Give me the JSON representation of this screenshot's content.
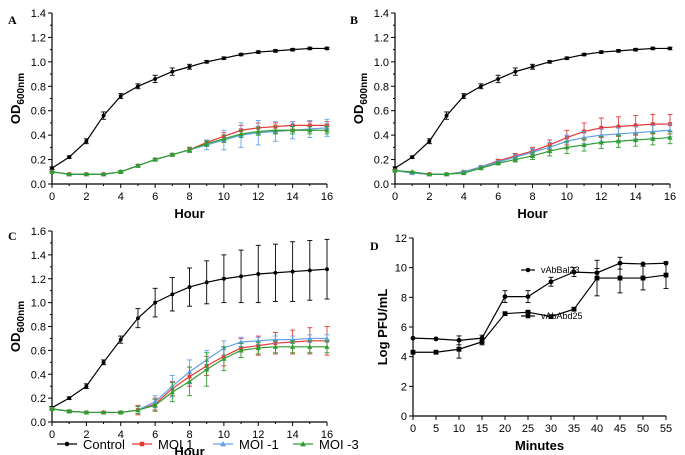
{
  "chart_data": [
    {
      "panel": "A",
      "type": "line",
      "xlabel": "Hour",
      "ylabel": "OD",
      "ylabel_sub": "600nm",
      "xlim": [
        0,
        16
      ],
      "ylim": [
        0,
        1.4
      ],
      "xticks": [
        "0",
        "2",
        "4",
        "6",
        "8",
        "10",
        "12",
        "14",
        "16"
      ],
      "yticks": [
        "0.0",
        "0.2",
        "0.4",
        "0.6",
        "0.8",
        "1.0",
        "1.2",
        "1.4"
      ],
      "x": [
        0,
        1,
        2,
        3,
        4,
        5,
        6,
        7,
        8,
        9,
        10,
        11,
        12,
        13,
        14,
        15,
        16
      ],
      "series": [
        {
          "name": "Control",
          "color": "#000000",
          "marker": "circle",
          "values": [
            0.13,
            0.22,
            0.35,
            0.56,
            0.72,
            0.8,
            0.86,
            0.92,
            0.96,
            1.0,
            1.03,
            1.06,
            1.08,
            1.09,
            1.1,
            1.11,
            1.11
          ],
          "errors": [
            0.01,
            0.01,
            0.02,
            0.03,
            0.02,
            0.02,
            0.03,
            0.03,
            0.02,
            0.01,
            0.01,
            0.01,
            0.01,
            0.01,
            0.01,
            0.01,
            0.01
          ]
        },
        {
          "name": "MOI 1",
          "color": "#e53935",
          "marker": "square",
          "values": [
            0.1,
            0.08,
            0.08,
            0.08,
            0.1,
            0.15,
            0.2,
            0.24,
            0.28,
            0.34,
            0.39,
            0.44,
            0.46,
            0.47,
            0.48,
            0.48,
            0.48
          ],
          "errors": [
            0.005,
            0.005,
            0.005,
            0.005,
            0.01,
            0.01,
            0.01,
            0.01,
            0.02,
            0.02,
            0.03,
            0.04,
            0.04,
            0.03,
            0.03,
            0.03,
            0.03
          ]
        },
        {
          "name": "MOI -1",
          "color": "#64a0e8",
          "marker": "triangle",
          "values": [
            0.1,
            0.08,
            0.08,
            0.08,
            0.1,
            0.15,
            0.2,
            0.24,
            0.28,
            0.32,
            0.36,
            0.4,
            0.42,
            0.43,
            0.44,
            0.45,
            0.46
          ],
          "errors": [
            0.005,
            0.005,
            0.005,
            0.005,
            0.01,
            0.01,
            0.01,
            0.01,
            0.02,
            0.04,
            0.08,
            0.1,
            0.1,
            0.08,
            0.07,
            0.07,
            0.07
          ]
        },
        {
          "name": "MOI -3",
          "color": "#2e9e2e",
          "marker": "triangle",
          "values": [
            0.1,
            0.08,
            0.08,
            0.08,
            0.1,
            0.15,
            0.2,
            0.24,
            0.28,
            0.33,
            0.37,
            0.41,
            0.43,
            0.44,
            0.44,
            0.44,
            0.44
          ],
          "errors": [
            0.005,
            0.005,
            0.005,
            0.005,
            0.01,
            0.01,
            0.01,
            0.01,
            0.02,
            0.02,
            0.03,
            0.03,
            0.03,
            0.03,
            0.03,
            0.03,
            0.03
          ]
        }
      ]
    },
    {
      "panel": "B",
      "type": "line",
      "xlabel": "Hour",
      "ylabel": "OD",
      "ylabel_sub": "600nm",
      "xlim": [
        0,
        16
      ],
      "ylim": [
        0,
        1.4
      ],
      "xticks": [
        "0",
        "2",
        "4",
        "6",
        "8",
        "10",
        "12",
        "14",
        "16"
      ],
      "yticks": [
        "0.0",
        "0.2",
        "0.4",
        "0.6",
        "0.8",
        "1.0",
        "1.2",
        "1.4"
      ],
      "x": [
        0,
        1,
        2,
        3,
        4,
        5,
        6,
        7,
        8,
        9,
        10,
        11,
        12,
        13,
        14,
        15,
        16
      ],
      "series": [
        {
          "name": "Control",
          "color": "#000000",
          "marker": "circle",
          "values": [
            0.13,
            0.22,
            0.35,
            0.56,
            0.72,
            0.8,
            0.86,
            0.92,
            0.96,
            1.0,
            1.03,
            1.06,
            1.08,
            1.09,
            1.1,
            1.11,
            1.11
          ],
          "errors": [
            0.01,
            0.01,
            0.02,
            0.03,
            0.02,
            0.02,
            0.03,
            0.03,
            0.02,
            0.01,
            0.01,
            0.01,
            0.01,
            0.01,
            0.01,
            0.01,
            0.01
          ]
        },
        {
          "name": "MOI 1",
          "color": "#e53935",
          "marker": "square",
          "values": [
            0.11,
            0.09,
            0.08,
            0.08,
            0.1,
            0.14,
            0.19,
            0.23,
            0.27,
            0.32,
            0.38,
            0.43,
            0.46,
            0.47,
            0.48,
            0.49,
            0.49
          ],
          "errors": [
            0.005,
            0.005,
            0.005,
            0.005,
            0.01,
            0.01,
            0.01,
            0.02,
            0.03,
            0.04,
            0.06,
            0.07,
            0.08,
            0.08,
            0.08,
            0.08,
            0.08
          ]
        },
        {
          "name": "MOI -1",
          "color": "#64a0e8",
          "marker": "triangle",
          "values": [
            0.11,
            0.09,
            0.08,
            0.08,
            0.1,
            0.14,
            0.18,
            0.22,
            0.26,
            0.3,
            0.35,
            0.38,
            0.4,
            0.41,
            0.42,
            0.43,
            0.44
          ],
          "errors": [
            0.005,
            0.005,
            0.005,
            0.005,
            0.01,
            0.01,
            0.01,
            0.02,
            0.03,
            0.04,
            0.05,
            0.05,
            0.05,
            0.05,
            0.05,
            0.05,
            0.05
          ]
        },
        {
          "name": "MOI -3",
          "color": "#2e9e2e",
          "marker": "triangle",
          "values": [
            0.11,
            0.1,
            0.08,
            0.08,
            0.09,
            0.13,
            0.17,
            0.2,
            0.23,
            0.27,
            0.3,
            0.32,
            0.34,
            0.35,
            0.36,
            0.37,
            0.38
          ],
          "errors": [
            0.005,
            0.005,
            0.005,
            0.005,
            0.01,
            0.01,
            0.01,
            0.02,
            0.03,
            0.04,
            0.05,
            0.05,
            0.05,
            0.05,
            0.05,
            0.05,
            0.05
          ]
        }
      ]
    },
    {
      "panel": "C",
      "type": "line",
      "xlabel": "Hour",
      "ylabel": "OD",
      "ylabel_sub": "600nm",
      "xlim": [
        0,
        16
      ],
      "ylim": [
        0,
        1.6
      ],
      "xticks": [
        "0",
        "2",
        "4",
        "6",
        "8",
        "10",
        "12",
        "14",
        "16"
      ],
      "yticks": [
        "0.0",
        "0.2",
        "0.4",
        "0.6",
        "0.8",
        "1.0",
        "1.2",
        "1.4",
        "1.6"
      ],
      "x": [
        0,
        1,
        2,
        3,
        4,
        5,
        6,
        7,
        8,
        9,
        10,
        11,
        12,
        13,
        14,
        15,
        16
      ],
      "series": [
        {
          "name": "Control",
          "color": "#000000",
          "marker": "circle",
          "values": [
            0.12,
            0.2,
            0.3,
            0.5,
            0.69,
            0.87,
            1.0,
            1.07,
            1.13,
            1.17,
            1.2,
            1.22,
            1.24,
            1.25,
            1.26,
            1.27,
            1.28
          ],
          "errors": [
            0.01,
            0.01,
            0.02,
            0.02,
            0.03,
            0.08,
            0.12,
            0.14,
            0.16,
            0.18,
            0.2,
            0.22,
            0.24,
            0.24,
            0.25,
            0.25,
            0.25
          ]
        },
        {
          "name": "MOI 1",
          "color": "#e53935",
          "marker": "square",
          "values": [
            0.11,
            0.09,
            0.08,
            0.08,
            0.08,
            0.1,
            0.15,
            0.28,
            0.38,
            0.47,
            0.55,
            0.62,
            0.64,
            0.66,
            0.67,
            0.68,
            0.68
          ],
          "errors": [
            0.01,
            0.01,
            0.005,
            0.005,
            0.01,
            0.04,
            0.05,
            0.06,
            0.08,
            0.08,
            0.08,
            0.08,
            0.08,
            0.09,
            0.1,
            0.11,
            0.12
          ]
        },
        {
          "name": "MOI -1",
          "color": "#64a0e8",
          "marker": "triangle",
          "values": [
            0.11,
            0.09,
            0.08,
            0.08,
            0.08,
            0.1,
            0.17,
            0.3,
            0.42,
            0.52,
            0.62,
            0.67,
            0.68,
            0.69,
            0.69,
            0.7,
            0.7
          ],
          "errors": [
            0.01,
            0.01,
            0.005,
            0.005,
            0.01,
            0.03,
            0.05,
            0.09,
            0.1,
            0.08,
            0.06,
            0.04,
            0.03,
            0.03,
            0.03,
            0.03,
            0.03
          ]
        },
        {
          "name": "MOI -3",
          "color": "#2e9e2e",
          "marker": "triangle",
          "values": [
            0.11,
            0.09,
            0.08,
            0.08,
            0.08,
            0.1,
            0.14,
            0.25,
            0.34,
            0.44,
            0.53,
            0.6,
            0.62,
            0.63,
            0.63,
            0.63,
            0.63
          ],
          "errors": [
            0.01,
            0.01,
            0.005,
            0.005,
            0.01,
            0.03,
            0.05,
            0.08,
            0.12,
            0.14,
            0.1,
            0.06,
            0.05,
            0.05,
            0.05,
            0.05,
            0.05
          ]
        }
      ]
    },
    {
      "panel": "D",
      "type": "line",
      "xlabel": "Minutes",
      "ylabel": "Log PFU/mL",
      "xlim": [
        0,
        55
      ],
      "ylim": [
        0,
        12
      ],
      "xticks": [
        "0",
        "5",
        "10",
        "15",
        "20",
        "25",
        "30",
        "35",
        "40",
        "45",
        "50",
        "55"
      ],
      "yticks": [
        "0",
        "2",
        "4",
        "6",
        "8",
        "10",
        "12"
      ],
      "x": [
        0,
        5,
        10,
        15,
        20,
        25,
        30,
        35,
        40,
        45,
        50,
        55
      ],
      "series": [
        {
          "name": "vAbBal23",
          "color": "#000000",
          "marker": "circle",
          "values": [
            5.25,
            5.2,
            5.1,
            5.25,
            8.05,
            8.05,
            9.05,
            9.7,
            9.65,
            10.3,
            10.25,
            10.3
          ],
          "errors": [
            0.0,
            0.0,
            0.3,
            0.2,
            0.4,
            0.4,
            0.3,
            0.3,
            0.3,
            0.4,
            0.0,
            0.0
          ]
        },
        {
          "name": "vAbAbd25",
          "color": "#000000",
          "marker": "square",
          "values": [
            4.3,
            4.3,
            4.5,
            5.0,
            6.9,
            7.0,
            6.7,
            7.2,
            9.3,
            9.3,
            9.3,
            9.5
          ],
          "errors": [
            0.0,
            0.0,
            0.6,
            0.2,
            0.1,
            0.1,
            0.1,
            0.1,
            1.2,
            1.0,
            0.8,
            0.9
          ]
        }
      ]
    }
  ],
  "legend": {
    "items": [
      {
        "label": "Control",
        "color": "#000000",
        "marker": "circle"
      },
      {
        "label": "MOI 1",
        "color": "#e53935",
        "marker": "square"
      },
      {
        "label": "MOI -1",
        "color": "#64a0e8",
        "marker": "triangle"
      },
      {
        "label": "MOI -3",
        "color": "#2e9e2e",
        "marker": "triangle"
      }
    ]
  }
}
